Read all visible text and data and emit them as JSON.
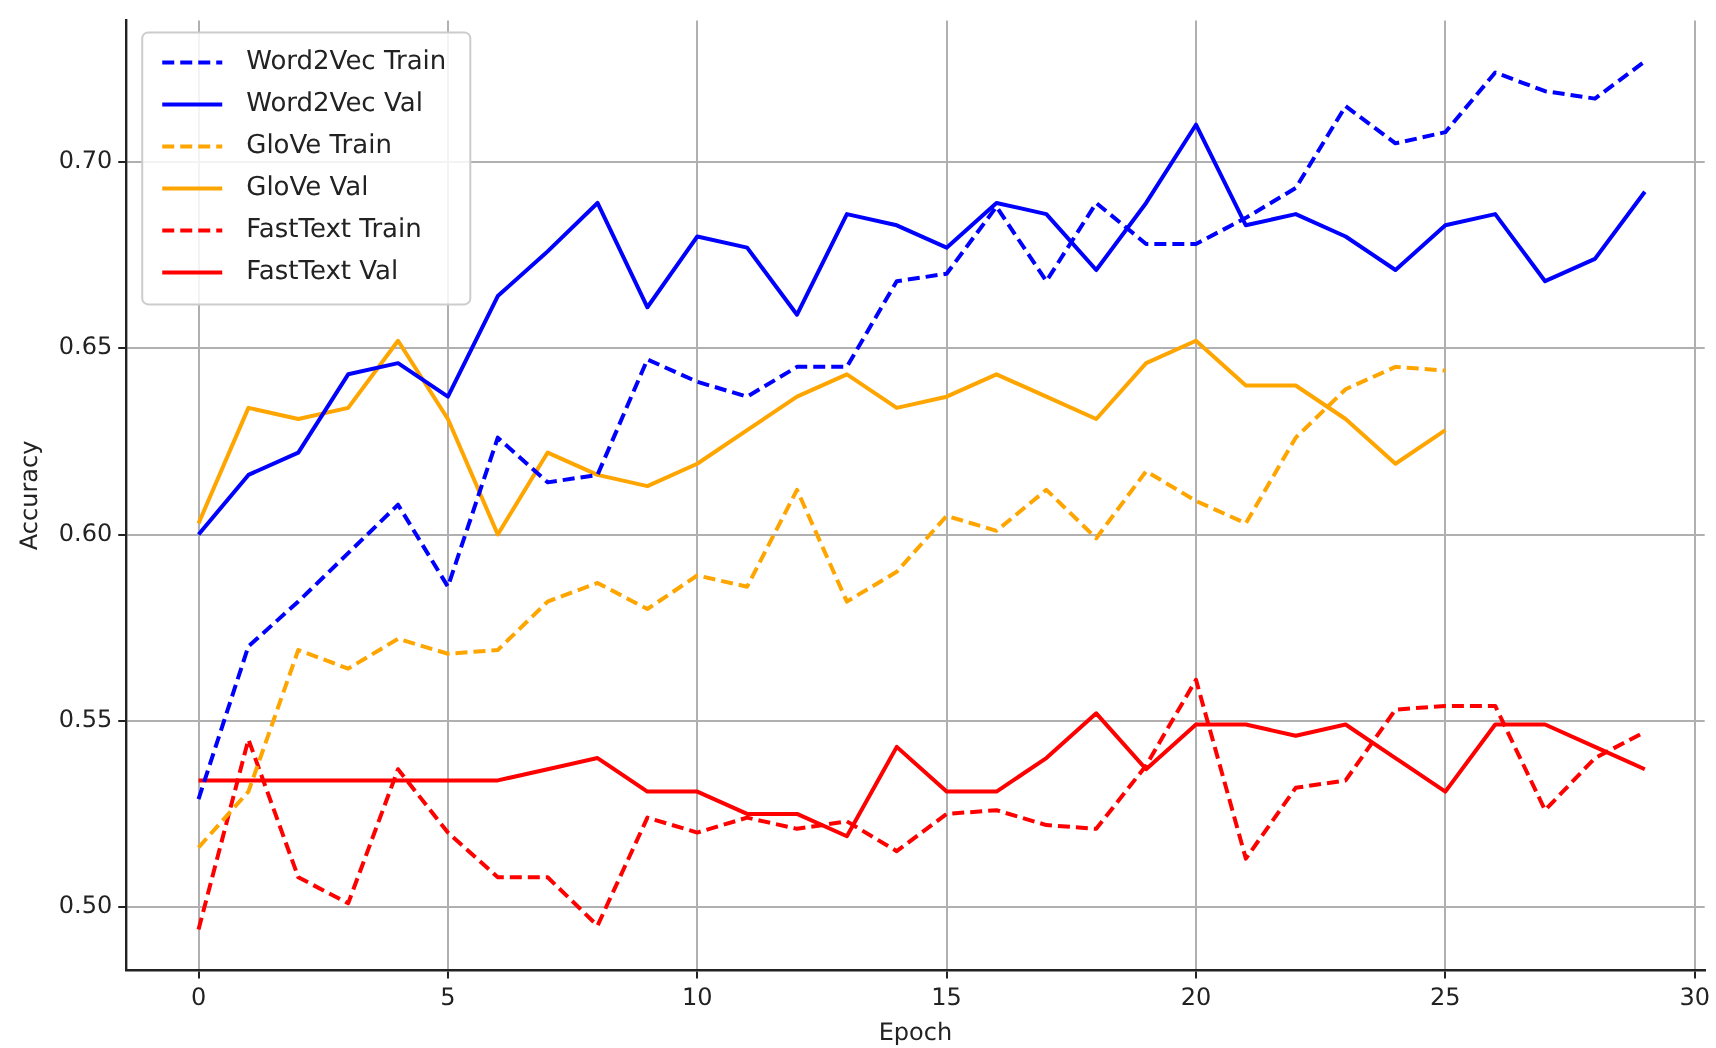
{
  "chart_data": {
    "type": "line",
    "xlabel": "Epoch",
    "ylabel": "Accuracy",
    "x": [
      0,
      1,
      2,
      3,
      4,
      5,
      6,
      7,
      8,
      9,
      10,
      11,
      12,
      13,
      14,
      15,
      16,
      17,
      18,
      19,
      20,
      21,
      22,
      23,
      24,
      25,
      26,
      27,
      28,
      29
    ],
    "xlim": [
      -1.45,
      30.2
    ],
    "xticks": [
      0,
      5,
      10,
      15,
      20,
      25,
      30
    ],
    "ylim": [
      0.483,
      0.738
    ],
    "yticks": [
      {
        "value": 0.5,
        "label": "0.50"
      },
      {
        "value": 0.55,
        "label": "0.55"
      },
      {
        "value": 0.6,
        "label": "0.60"
      },
      {
        "value": 0.65,
        "label": "0.65"
      },
      {
        "value": 0.7,
        "label": "0.70"
      }
    ],
    "grid": true,
    "legend": "top left",
    "marker": "none",
    "series": [
      {
        "name": "Word2Vec Train",
        "color": "#0000ff",
        "line_style": "dashed",
        "values": [
          0.529,
          0.57,
          0.582,
          0.595,
          0.608,
          0.586,
          0.626,
          0.614,
          0.616,
          0.647,
          0.641,
          0.637,
          0.645,
          0.645,
          0.668,
          0.67,
          0.688,
          0.668,
          0.689,
          0.678,
          0.678,
          0.685,
          0.693,
          0.715,
          0.705,
          0.708,
          0.724,
          0.719,
          0.717,
          0.727
        ]
      },
      {
        "name": "Word2Vec Val",
        "color": "#0000ff",
        "line_style": "solid",
        "values": [
          0.6,
          0.616,
          0.622,
          0.643,
          0.646,
          0.637,
          0.664,
          0.676,
          0.689,
          0.661,
          0.68,
          0.677,
          0.659,
          0.686,
          0.683,
          0.677,
          0.689,
          0.686,
          0.671,
          0.689,
          0.71,
          0.683,
          0.686,
          0.68,
          0.671,
          0.683,
          0.686,
          0.668,
          0.674,
          0.692
        ]
      },
      {
        "name": "GloVe Train",
        "color": "#ffa500",
        "line_style": "dashed",
        "values": [
          0.516,
          0.531,
          0.569,
          0.564,
          0.572,
          0.568,
          0.569,
          0.582,
          0.587,
          0.58,
          0.589,
          0.586,
          0.612,
          0.582,
          0.59,
          0.605,
          0.601,
          0.612,
          0.599,
          0.617,
          0.609,
          0.603,
          0.626,
          0.639,
          0.645,
          0.644,
          null,
          null,
          null,
          null
        ]
      },
      {
        "name": "GloVe Val",
        "color": "#ffa500",
        "line_style": "solid",
        "values": [
          0.603,
          0.634,
          0.631,
          0.634,
          0.652,
          0.631,
          0.6,
          0.622,
          0.616,
          0.613,
          0.619,
          0.628,
          0.637,
          0.643,
          0.634,
          0.637,
          0.643,
          0.637,
          0.631,
          0.646,
          0.652,
          0.64,
          0.64,
          0.631,
          0.619,
          0.628,
          null,
          null,
          null,
          null
        ]
      },
      {
        "name": "FastText Train",
        "color": "#ff0000",
        "line_style": "dashed",
        "values": [
          0.494,
          0.545,
          0.508,
          0.501,
          0.537,
          0.52,
          0.508,
          0.508,
          0.495,
          0.524,
          0.52,
          0.524,
          0.521,
          0.523,
          0.515,
          0.525,
          0.526,
          0.522,
          0.521,
          0.538,
          0.561,
          0.513,
          0.532,
          0.534,
          0.553,
          0.554,
          0.554,
          0.526,
          0.54,
          0.547
        ]
      },
      {
        "name": "FastText Val",
        "color": "#ff0000",
        "line_style": "solid",
        "values": [
          0.534,
          0.534,
          0.534,
          0.534,
          0.534,
          0.534,
          0.534,
          0.537,
          0.54,
          0.531,
          0.531,
          0.525,
          0.525,
          0.519,
          0.543,
          0.531,
          0.531,
          0.54,
          0.552,
          0.537,
          0.549,
          0.549,
          0.546,
          0.549,
          0.54,
          0.531,
          0.549,
          0.549,
          0.543,
          0.537
        ]
      }
    ]
  }
}
